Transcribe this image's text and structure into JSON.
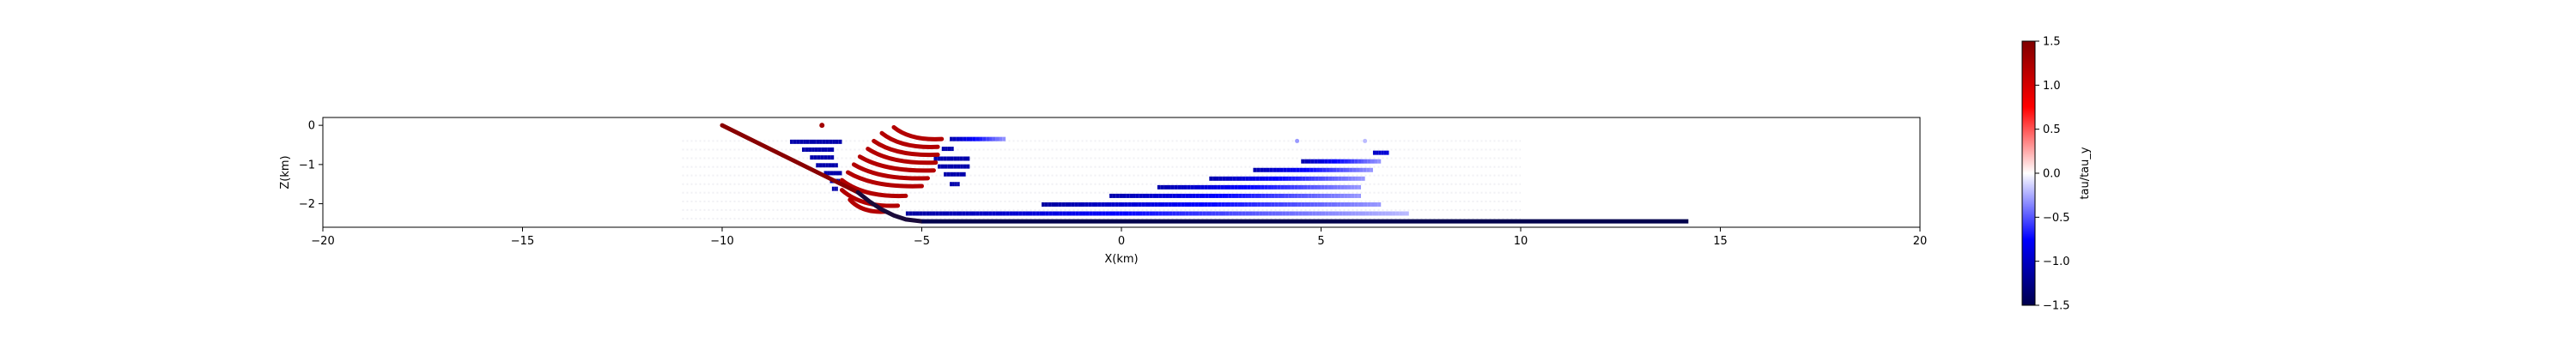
{
  "chart_data": {
    "type": "scatter",
    "title": "",
    "xlabel": "X(km)",
    "ylabel": "Z(km)",
    "xlim": [
      -20,
      20
    ],
    "ylim": [
      -2.6,
      0.2
    ],
    "x_ticks": [
      -20,
      -15,
      -10,
      -5,
      0,
      5,
      10,
      15,
      20
    ],
    "y_ticks": [
      0,
      -1,
      -2
    ],
    "grid": false,
    "legend": "none",
    "colorbar": {
      "label": "tau/tau_y",
      "cmap": "seismic",
      "vmin": -1.5,
      "vmax": 1.5,
      "ticks": [
        1.5,
        1.0,
        0.5,
        0.0,
        -0.5,
        -1.0,
        -1.5
      ],
      "placement": "right"
    },
    "fault": {
      "straight": {
        "x": [
          -10.0,
          -6.6
        ],
        "z": [
          0.0,
          -1.71
        ]
      },
      "bend": {
        "x": [
          -6.6,
          -6.3,
          -6.0,
          -5.7,
          -5.4,
          -5.0
        ],
        "z": [
          -1.71,
          -1.95,
          -2.15,
          -2.3,
          -2.4,
          -2.45
        ]
      },
      "flat": {
        "x": [
          -5.0,
          14.2
        ],
        "z": [
          -2.45,
          -2.45
        ]
      },
      "value_straight": 1.45,
      "value_flat": -1.5
    },
    "red_arcs": [
      {
        "x_start": -5.7,
        "z_start": -0.05,
        "x_end": -4.5,
        "z_end": -0.35,
        "value": 1.2
      },
      {
        "x_start": -6.0,
        "z_start": -0.2,
        "x_end": -4.6,
        "z_end": -0.55,
        "value": 1.2
      },
      {
        "x_start": -6.2,
        "z_start": -0.4,
        "x_end": -4.6,
        "z_end": -0.75,
        "value": 1.2
      },
      {
        "x_start": -6.35,
        "z_start": -0.6,
        "x_end": -4.65,
        "z_end": -0.95,
        "value": 1.2
      },
      {
        "x_start": -6.55,
        "z_start": -0.8,
        "x_end": -4.7,
        "z_end": -1.15,
        "value": 1.2
      },
      {
        "x_start": -6.7,
        "z_start": -1.0,
        "x_end": -4.85,
        "z_end": -1.35,
        "value": 1.2
      },
      {
        "x_start": -6.85,
        "z_start": -1.2,
        "x_end": -5.0,
        "z_end": -1.55,
        "value": 1.2
      },
      {
        "x_start": -7.0,
        "z_start": -1.4,
        "x_end": -5.4,
        "z_end": -1.8,
        "value": 1.2
      },
      {
        "x_start": -7.0,
        "z_start": -1.65,
        "x_end": -5.6,
        "z_end": -2.05,
        "value": 1.2
      },
      {
        "x_start": -6.8,
        "z_start": -1.9,
        "x_end": -5.9,
        "z_end": -2.2,
        "value": 1.2
      }
    ],
    "red_dot": {
      "x": -7.5,
      "z": 0.0,
      "value": 1.3
    },
    "blue_segments": [
      {
        "x1": -8.3,
        "x2": -7.0,
        "z": -0.42,
        "v1": -1.1,
        "v2": -1.1
      },
      {
        "x1": -8.0,
        "x2": -7.2,
        "z": -0.62,
        "v1": -1.1,
        "v2": -1.1
      },
      {
        "x1": -7.8,
        "x2": -7.2,
        "z": -0.82,
        "v1": -1.1,
        "v2": -1.1
      },
      {
        "x1": -7.65,
        "x2": -7.1,
        "z": -1.02,
        "v1": -1.1,
        "v2": -1.1
      },
      {
        "x1": -7.45,
        "x2": -7.0,
        "z": -1.22,
        "v1": -1.1,
        "v2": -1.1
      },
      {
        "x1": -7.3,
        "x2": -7.05,
        "z": -1.42,
        "v1": -1.1,
        "v2": -1.1
      },
      {
        "x1": -7.25,
        "x2": -7.1,
        "z": -1.62,
        "v1": -1.1,
        "v2": -1.1
      },
      {
        "x1": -4.3,
        "x2": -2.9,
        "z": -0.35,
        "v1": -1.1,
        "v2": -0.3
      },
      {
        "x1": -4.5,
        "x2": -4.2,
        "z": -0.6,
        "v1": -1.1,
        "v2": -1.1
      },
      {
        "x1": -4.7,
        "x2": -3.8,
        "z": -0.85,
        "v1": -1.1,
        "v2": -1.1
      },
      {
        "x1": -4.6,
        "x2": -3.8,
        "z": -1.05,
        "v1": -1.1,
        "v2": -1.1
      },
      {
        "x1": -4.45,
        "x2": -3.9,
        "z": -1.25,
        "v1": -1.1,
        "v2": -1.1
      },
      {
        "x1": -4.3,
        "x2": -4.05,
        "z": -1.5,
        "v1": -1.1,
        "v2": -1.1
      },
      {
        "x1": -5.4,
        "x2": 7.2,
        "z": -2.25,
        "v1": -1.15,
        "v2": -0.2
      },
      {
        "x1": -2.0,
        "x2": 6.5,
        "z": -2.02,
        "v1": -1.15,
        "v2": -0.3
      },
      {
        "x1": -0.3,
        "x2": 6.0,
        "z": -1.8,
        "v1": -1.1,
        "v2": -0.3
      },
      {
        "x1": 0.9,
        "x2": 6.0,
        "z": -1.58,
        "v1": -1.1,
        "v2": -0.3
      },
      {
        "x1": 2.2,
        "x2": 6.1,
        "z": -1.36,
        "v1": -1.1,
        "v2": -0.3
      },
      {
        "x1": 3.3,
        "x2": 6.3,
        "z": -1.14,
        "v1": -1.1,
        "v2": -0.3
      },
      {
        "x1": 4.5,
        "x2": 6.5,
        "z": -0.92,
        "v1": -1.1,
        "v2": -0.3
      },
      {
        "x1": 6.3,
        "x2": 6.7,
        "z": -0.7,
        "v1": -1.0,
        "v2": -0.9
      }
    ],
    "faint_dots": [
      {
        "x": 4.4,
        "z": -0.4,
        "value": -0.3
      },
      {
        "x": 6.1,
        "z": -0.4,
        "value": -0.2
      }
    ]
  }
}
